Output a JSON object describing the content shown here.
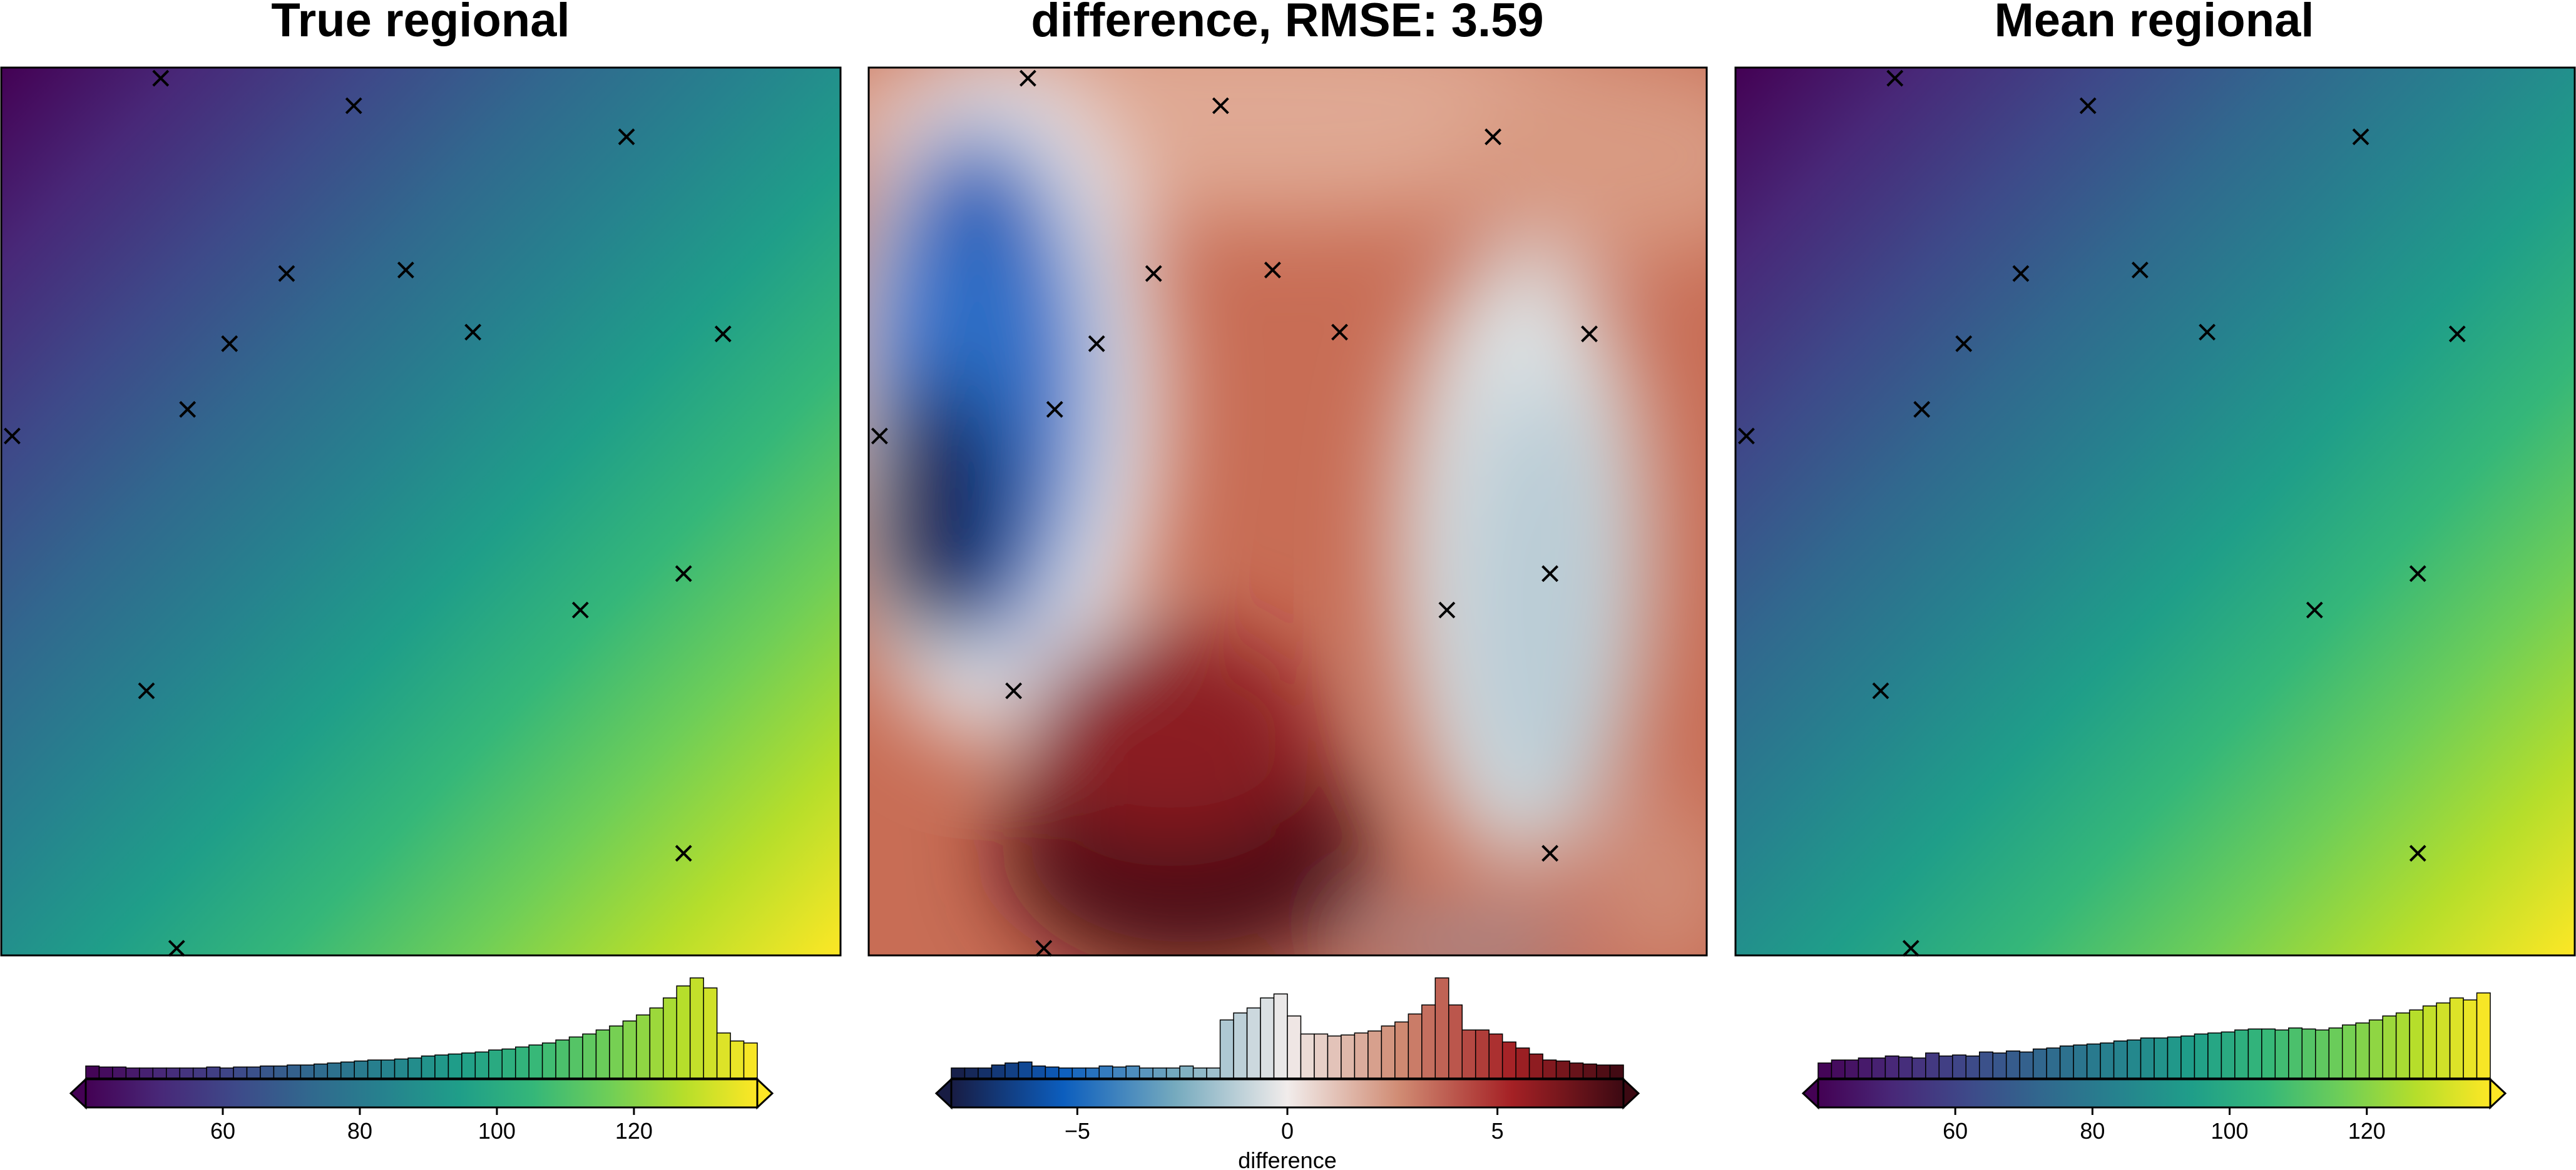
{
  "colors": {
    "viridis": [
      "#440154",
      "#482878",
      "#3e4989",
      "#31688e",
      "#26828e",
      "#1f9e89",
      "#35b779",
      "#6ece58",
      "#b5de2b",
      "#fde725"
    ],
    "balance": [
      "#181c43",
      "#0c5ebe",
      "#75aabe",
      "#f1eceb",
      "#d08b73",
      "#a52125",
      "#3c0912"
    ]
  },
  "points": [
    [
      0.19,
      0.012
    ],
    [
      0.42,
      0.043
    ],
    [
      0.745,
      0.078
    ],
    [
      0.34,
      0.232
    ],
    [
      0.482,
      0.228
    ],
    [
      0.272,
      0.311
    ],
    [
      0.562,
      0.298
    ],
    [
      0.86,
      0.3
    ],
    [
      0.222,
      0.385
    ],
    [
      0.013,
      0.415
    ],
    [
      0.813,
      0.57
    ],
    [
      0.69,
      0.611
    ],
    [
      0.173,
      0.702
    ],
    [
      0.813,
      0.885
    ],
    [
      0.209,
      0.992
    ]
  ],
  "chart_data": [
    {
      "type": "heatmap",
      "title": "True regional",
      "colormap": "viridis",
      "colorbar": {
        "range": [
          40,
          138
        ],
        "ticks": [
          60,
          80,
          100,
          120
        ],
        "label": "",
        "extend": "both",
        "histogram": [
          0.12,
          0.11,
          0.11,
          0.1,
          0.1,
          0.1,
          0.1,
          0.1,
          0.1,
          0.11,
          0.1,
          0.11,
          0.11,
          0.12,
          0.12,
          0.13,
          0.13,
          0.14,
          0.15,
          0.16,
          0.17,
          0.18,
          0.18,
          0.19,
          0.2,
          0.22,
          0.23,
          0.24,
          0.25,
          0.26,
          0.28,
          0.29,
          0.31,
          0.33,
          0.35,
          0.38,
          0.41,
          0.44,
          0.48,
          0.52,
          0.57,
          0.63,
          0.7,
          0.8,
          0.92,
          1.0,
          0.9,
          0.45,
          0.37,
          0.35
        ]
      }
    },
    {
      "type": "heatmap",
      "title": "difference, RMSE: 3.59",
      "colormap": "balance",
      "colorbar": {
        "range": [
          -8,
          8
        ],
        "ticks": [
          -5,
          0,
          5
        ],
        "label": "difference",
        "extend": "both",
        "histogram": [
          0.1,
          0.1,
          0.1,
          0.13,
          0.15,
          0.16,
          0.12,
          0.11,
          0.1,
          0.1,
          0.1,
          0.12,
          0.11,
          0.12,
          0.1,
          0.1,
          0.1,
          0.12,
          0.1,
          0.1,
          0.58,
          0.65,
          0.7,
          0.8,
          0.84,
          0.62,
          0.44,
          0.44,
          0.42,
          0.43,
          0.45,
          0.47,
          0.52,
          0.56,
          0.64,
          0.73,
          1.0,
          0.73,
          0.48,
          0.48,
          0.44,
          0.36,
          0.3,
          0.24,
          0.18,
          0.17,
          0.15,
          0.14,
          0.13,
          0.13
        ]
      }
    },
    {
      "type": "heatmap",
      "title": "Mean regional",
      "colormap": "viridis",
      "colorbar": {
        "range": [
          40,
          138
        ],
        "ticks": [
          60,
          80,
          100,
          120
        ],
        "label": "",
        "extend": "both",
        "histogram": [
          0.15,
          0.18,
          0.18,
          0.2,
          0.2,
          0.22,
          0.21,
          0.2,
          0.25,
          0.22,
          0.23,
          0.22,
          0.26,
          0.25,
          0.27,
          0.26,
          0.29,
          0.3,
          0.32,
          0.33,
          0.34,
          0.35,
          0.37,
          0.38,
          0.4,
          0.4,
          0.41,
          0.42,
          0.44,
          0.45,
          0.46,
          0.48,
          0.49,
          0.49,
          0.48,
          0.5,
          0.49,
          0.48,
          0.5,
          0.53,
          0.55,
          0.58,
          0.62,
          0.65,
          0.68,
          0.72,
          0.75,
          0.8,
          0.78,
          0.85
        ]
      }
    }
  ]
}
